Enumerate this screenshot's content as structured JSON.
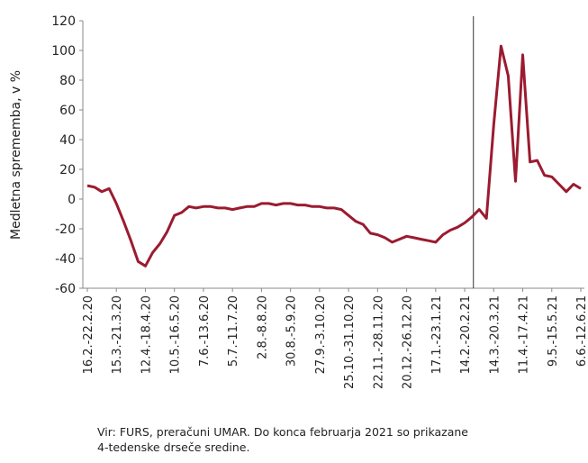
{
  "chart_data": {
    "type": "line",
    "ylabel": "Medletna sprememba, v %",
    "categories": [
      "16.2.-22.2.20",
      null,
      null,
      null,
      "15.3.-21.3.20",
      null,
      null,
      null,
      "12.4.-18.4.20",
      null,
      null,
      null,
      "10.5.-16.5.20",
      null,
      null,
      null,
      "7.6.-13.6.20",
      null,
      null,
      null,
      "5.7.-11.7.20",
      null,
      null,
      null,
      "2.8.-8.8.20",
      null,
      null,
      null,
      "30.8.-5.9.20",
      null,
      null,
      null,
      "27.9.-3.10.20",
      null,
      null,
      null,
      "25.10.-31.10.20",
      null,
      null,
      null,
      "22.11.-28.11.20",
      null,
      null,
      null,
      "20.12.-26.12.20",
      null,
      null,
      null,
      "17.1.-23.1.21",
      null,
      null,
      null,
      "14.2.-20.2.21",
      null,
      null,
      null,
      "14.3.-20.3.21",
      null,
      null,
      null,
      "11.4.-17.4.21",
      null,
      null,
      null,
      "9.5.-15.5.21",
      null,
      null,
      null,
      "6.6.-12.6.21"
    ],
    "series": [
      {
        "color": "#9b1b30",
        "values": [
          9,
          8,
          5,
          7,
          -3,
          -15,
          -28,
          -42,
          -45,
          -36,
          -30,
          -22,
          -11,
          -9,
          -5,
          -6,
          -5,
          -5,
          -6,
          -6,
          -7,
          -6,
          -5,
          -5,
          -3,
          -3,
          -4,
          -3,
          -3,
          -4,
          -4,
          -5,
          -5,
          -6,
          -6,
          -7,
          -11,
          -15,
          -17,
          -23,
          -24,
          -26,
          -29,
          -27,
          -25,
          -26,
          -27,
          -28,
          -29,
          -24,
          -21,
          -19,
          -16,
          -12,
          -7,
          -13,
          50,
          103,
          83,
          12,
          97,
          25,
          26,
          16,
          15,
          10,
          5,
          10,
          7
        ]
      }
    ],
    "ylim": [
      -60,
      120
    ],
    "yticks": [
      -60,
      -40,
      -20,
      0,
      20,
      40,
      60,
      80,
      100,
      120
    ],
    "marker_line_category": "14.2.-20.2.21",
    "note": [
      "Vir: FURS, preračuni UMAR. Do konca februarja 2021 so prikazane",
      "4-tedenske drseče sredine."
    ]
  }
}
